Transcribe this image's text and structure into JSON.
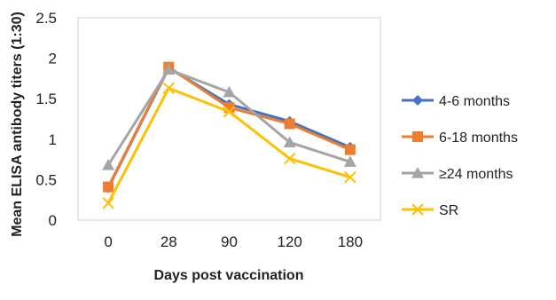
{
  "chart_data": {
    "type": "line",
    "title": "",
    "xlabel": "Days post vaccination",
    "ylabel": "Mean ELISA antibody titers (1:30)",
    "categories": [
      "0",
      "28",
      "90",
      "120",
      "180"
    ],
    "ylim": [
      0,
      2.5
    ],
    "yticks": [
      "0",
      "0.5",
      "1",
      "1.5",
      "2",
      "2.5"
    ],
    "grid": false,
    "legend_position": "right",
    "series": [
      {
        "name": "4-6 months",
        "values": [
          0.4,
          1.88,
          1.43,
          1.22,
          0.9
        ],
        "color": "#4472C4",
        "marker": "diamond"
      },
      {
        "name": "6-18 months",
        "values": [
          0.41,
          1.89,
          1.39,
          1.19,
          0.87
        ],
        "color": "#ED7D31",
        "marker": "square"
      },
      {
        "name": "≥24 months",
        "values": [
          0.68,
          1.86,
          1.58,
          0.96,
          0.72
        ],
        "color": "#A5A5A5",
        "marker": "triangle"
      },
      {
        "name": "SR",
        "values": [
          0.21,
          1.63,
          1.34,
          0.76,
          0.53
        ],
        "color": "#FFC000",
        "marker": "x"
      }
    ]
  }
}
